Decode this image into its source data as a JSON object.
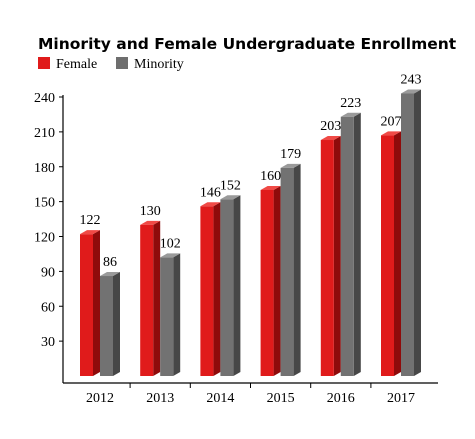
{
  "chart_data": {
    "type": "bar",
    "title": "Minority and Female Undergraduate Enrollment",
    "categories": [
      "2012",
      "2013",
      "2014",
      "2015",
      "2016",
      "2017"
    ],
    "series": [
      {
        "name": "Female",
        "values": [
          122,
          130,
          146,
          160,
          203,
          207
        ],
        "color": "#e01b1b"
      },
      {
        "name": "Minority",
        "values": [
          86,
          102,
          152,
          179,
          223,
          243
        ],
        "color": "#6e6e6e"
      }
    ],
    "yticks": [
      30,
      60,
      90,
      120,
      150,
      180,
      210,
      240
    ],
    "ylim": [
      0,
      240
    ],
    "legend_position": "top-left",
    "grid": false,
    "style": "3d-bars"
  }
}
